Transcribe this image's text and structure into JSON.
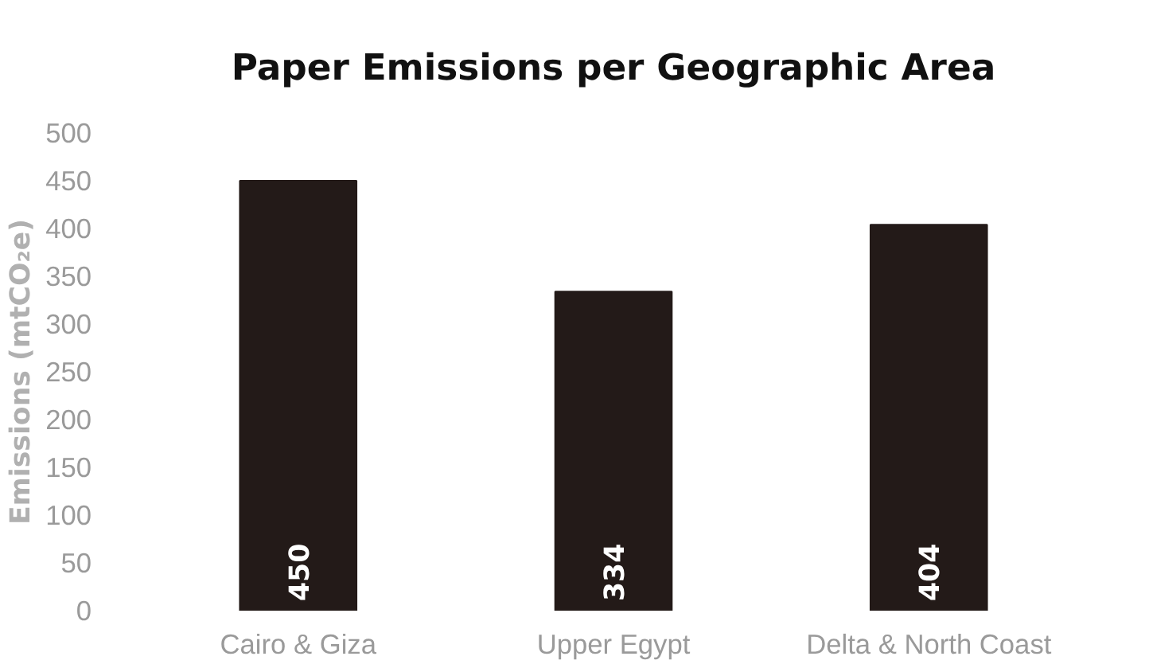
{
  "chart_data": {
    "type": "bar",
    "title": "Paper Emissions per Geographic Area",
    "ylabel": "Emissions (mtCO₂e)",
    "categories": [
      "Cairo & Giza",
      "Upper Egypt",
      "Delta & North Coast"
    ],
    "values": [
      450,
      334,
      404
    ],
    "color": "#231a18",
    "data_labels": true,
    "ylim": [
      0,
      500
    ],
    "yticks": [
      0,
      50,
      100,
      150,
      200,
      250,
      300,
      350,
      400,
      450,
      500
    ],
    "grid": false
  }
}
